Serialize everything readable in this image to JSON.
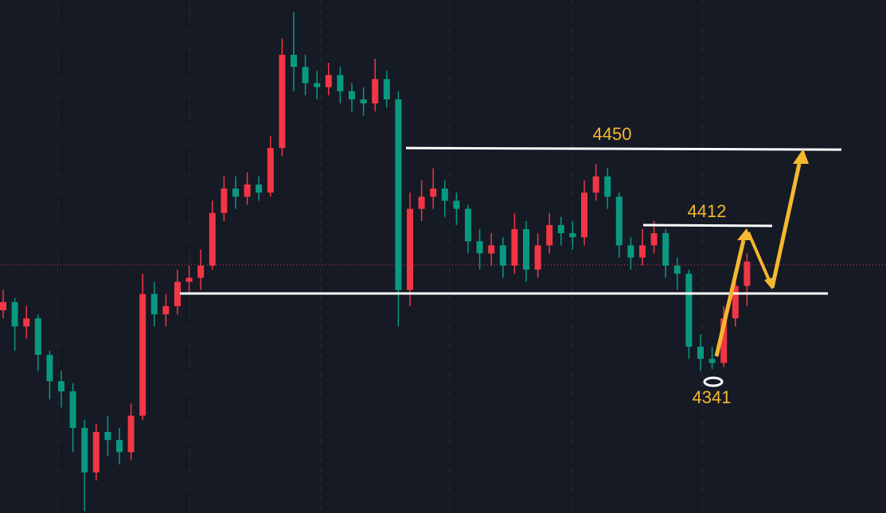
{
  "chart_data": {
    "type": "candlestick",
    "ylim": [
      4270,
      4523
    ],
    "up_color": "#f23645",
    "down_color": "#089981",
    "open": [
      4370,
      4374,
      4362,
      4366,
      4348,
      4335,
      4330,
      4312,
      4290,
      4310,
      4306,
      4300,
      4318,
      4378,
      4368,
      4372,
      4384,
      4386,
      4392,
      4418,
      4430,
      4426,
      4432,
      4428,
      4450,
      4496,
      4490,
      4482,
      4480,
      4486,
      4478,
      4474,
      4472,
      4484,
      4474,
      4380,
      4420,
      4426,
      4430,
      4424,
      4420,
      4404,
      4398,
      4402,
      4392,
      4410,
      4390,
      4402,
      4412,
      4408,
      4406,
      4428,
      4436,
      4426,
      4402,
      4396,
      4402,
      4408,
      4392,
      4388,
      4352,
      4346,
      4344,
      4366,
      4382
    ],
    "high": [
      4380,
      4376,
      4372,
      4368,
      4350,
      4340,
      4334,
      4316,
      4314,
      4318,
      4312,
      4324,
      4388,
      4384,
      4378,
      4390,
      4392,
      4400,
      4424,
      4436,
      4436,
      4438,
      4436,
      4456,
      4504,
      4517,
      4496,
      4488,
      4492,
      4490,
      4482,
      4480,
      4494,
      4488,
      4478,
      4428,
      4434,
      4440,
      4434,
      4428,
      4422,
      4410,
      4408,
      4406,
      4418,
      4414,
      4408,
      4418,
      4416,
      4414,
      4434,
      4442,
      4440,
      4428,
      4406,
      4410,
      4414,
      4410,
      4396,
      4390,
      4358,
      4352,
      4372,
      4388,
      4398
    ],
    "low": [
      4366,
      4350,
      4356,
      4340,
      4326,
      4322,
      4300,
      4271,
      4286,
      4298,
      4294,
      4296,
      4316,
      4362,
      4362,
      4368,
      4378,
      4380,
      4390,
      4414,
      4420,
      4422,
      4424,
      4426,
      4446,
      4478,
      4476,
      4474,
      4476,
      4472,
      4468,
      4466,
      4468,
      4470,
      4362,
      4372,
      4414,
      4420,
      4416,
      4412,
      4398,
      4390,
      4392,
      4386,
      4388,
      4384,
      4386,
      4398,
      4402,
      4400,
      4402,
      4424,
      4420,
      4396,
      4390,
      4392,
      4398,
      4386,
      4380,
      4346,
      4340,
      4341,
      4342,
      4362,
      4372
    ],
    "close": [
      4374,
      4362,
      4366,
      4348,
      4335,
      4330,
      4312,
      4290,
      4310,
      4306,
      4300,
      4318,
      4378,
      4368,
      4372,
      4384,
      4386,
      4392,
      4418,
      4430,
      4426,
      4432,
      4428,
      4450,
      4496,
      4490,
      4482,
      4480,
      4486,
      4478,
      4474,
      4472,
      4484,
      4474,
      4380,
      4420,
      4426,
      4430,
      4424,
      4420,
      4404,
      4398,
      4402,
      4392,
      4410,
      4390,
      4402,
      4412,
      4408,
      4406,
      4428,
      4436,
      4426,
      4402,
      4396,
      4402,
      4408,
      4392,
      4388,
      4352,
      4346,
      4344,
      4366,
      4382,
      4394
    ],
    "annotations": [
      4450,
      4412,
      4341
    ],
    "annotation_color": "#f5b82e"
  }
}
